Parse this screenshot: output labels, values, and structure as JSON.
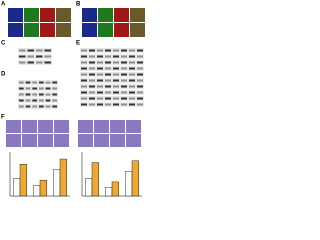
{
  "panels": {
    "A": "A",
    "B": "B",
    "C": "C",
    "D": "D",
    "E": "E",
    "F": "F"
  },
  "charts": [
    {
      "ylim": [
        0,
        250
      ],
      "series": [
        {
          "color": "#ffffff",
          "values": [
            100,
            60,
            150
          ]
        },
        {
          "color": "#f0a830",
          "values": [
            180,
            90,
            210
          ]
        }
      ]
    },
    {
      "ylim": [
        0,
        250
      ],
      "series": [
        {
          "color": "#ffffff",
          "values": [
            100,
            50,
            140
          ]
        },
        {
          "color": "#f0a830",
          "values": [
            190,
            80,
            200
          ]
        }
      ]
    }
  ]
}
